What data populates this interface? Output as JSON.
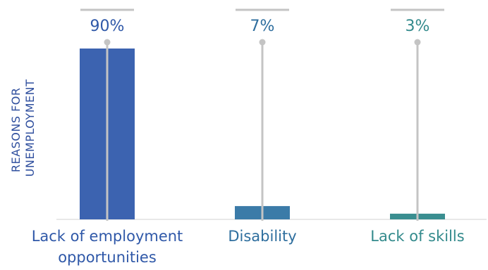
{
  "chart_data": {
    "type": "bar",
    "ylabel_lines": [
      "REASONS FOR",
      "UNEMPLOYMENT"
    ],
    "categories": [
      {
        "lines": [
          "Lack of employment",
          "opportunities"
        ],
        "color": "#3c63b0",
        "label_color": "#2f58a8"
      },
      {
        "lines": [
          "Disability"
        ],
        "color": "#3b7ba8",
        "label_color": "#2e6e9e"
      },
      {
        "lines": [
          "Lack of skills"
        ],
        "color": "#3a8e90",
        "label_color": "#338a8c"
      }
    ],
    "values": [
      90,
      7,
      3
    ],
    "value_labels": [
      "90%",
      "7%",
      "3%"
    ],
    "ylim": [
      0,
      100
    ],
    "grid": false,
    "legend": "none",
    "colors": {
      "stem": "#c4c4c4",
      "axis": "#d0d0d0",
      "ylabel": "#2f4f9e"
    }
  }
}
